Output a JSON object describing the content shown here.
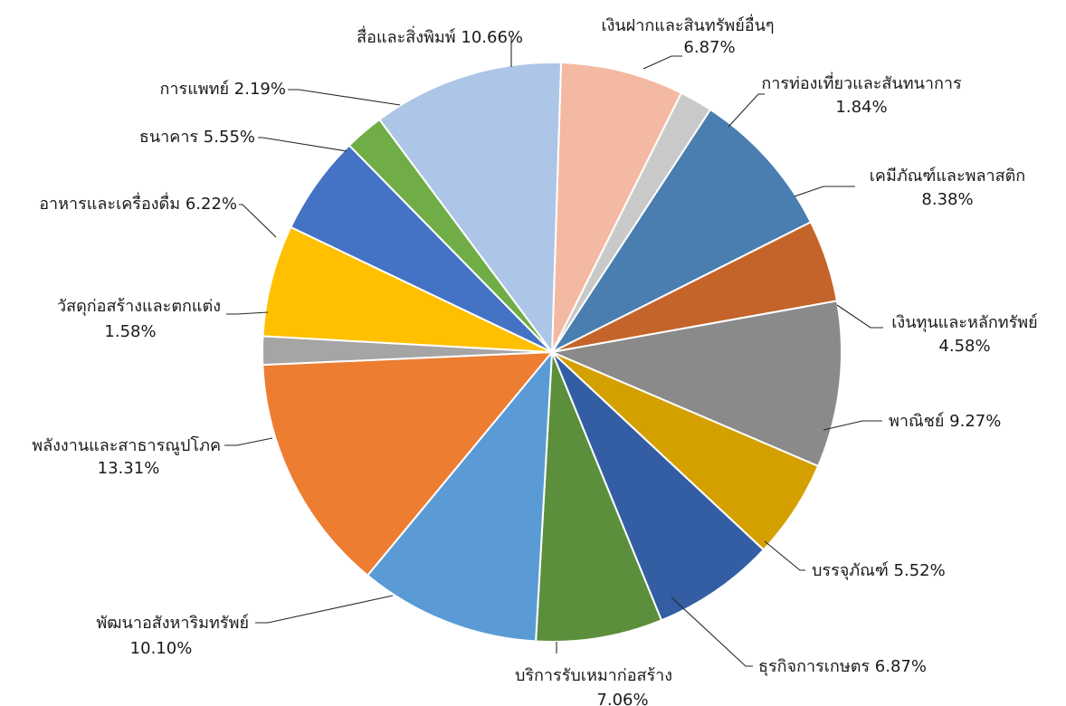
{
  "chart_data": {
    "type": "pie",
    "title": "",
    "unit": "%",
    "slices": [
      {
        "label": "เงินฝากและสินทรัพย์อื่นๆ",
        "value": 6.87,
        "display": "6.87%",
        "color": "#F4B9A3"
      },
      {
        "label": "การท่องเที่ยวและสันทนาการ",
        "value": 1.84,
        "display": "1.84%",
        "color": "#C9C9C9"
      },
      {
        "label": "เคมีภัณฑ์และพลาสติก",
        "value": 8.38,
        "display": "8.38%",
        "color": "#4A7EB0"
      },
      {
        "label": "เงินทุนและหลักทรัพย์",
        "value": 4.58,
        "display": "4.58%",
        "color": "#C5642A"
      },
      {
        "label": "พาณิชย์",
        "value": 9.27,
        "display": "9.27%",
        "color": "#8A8A8A"
      },
      {
        "label": "บรรจุภัณฑ์",
        "value": 5.52,
        "display": "5.52%",
        "color": "#D4A000"
      },
      {
        "label": "ธุรกิจการเกษตร",
        "value": 6.87,
        "display": "6.87%",
        "color": "#345EA4"
      },
      {
        "label": "บริการรับเหมาก่อสร้าง",
        "value": 7.06,
        "display": "7.06%",
        "color": "#5B8F3C"
      },
      {
        "label": "พัฒนาอสังหาริมทรัพย์",
        "value": 10.1,
        "display": "10.10%",
        "color": "#5A9BD5"
      },
      {
        "label": "พลังงานและสาธารณูปโภค",
        "value": 13.31,
        "display": "13.31%",
        "color": "#ED7D31"
      },
      {
        "label": "วัสดุก่อสร้างและตกแต่ง",
        "value": 1.58,
        "display": "1.58%",
        "color": "#A5A5A5"
      },
      {
        "label": "อาหารและเครื่องดื่ม",
        "value": 6.22,
        "display": "6.22%",
        "color": "#FFC000"
      },
      {
        "label": "ธนาคาร",
        "value": 5.55,
        "display": "5.55%",
        "color": "#4472C4"
      },
      {
        "label": "การแพทย์",
        "value": 2.19,
        "display": "2.19%",
        "color": "#70AD47"
      },
      {
        "label": "สื่อและสิ่งพิมพ์",
        "value": 10.66,
        "display": "10.66%",
        "color": "#ADC5E6"
      }
    ]
  }
}
